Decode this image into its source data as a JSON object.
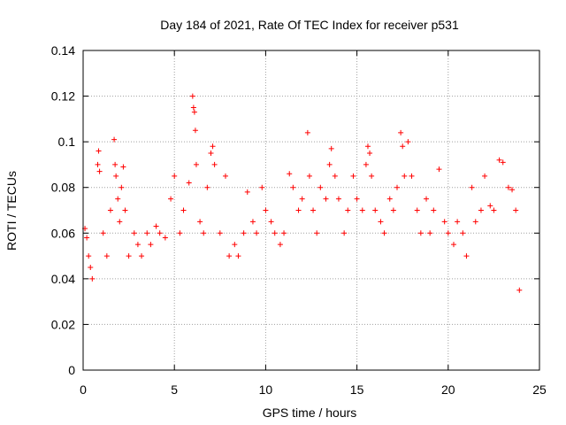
{
  "chart_data": {
    "type": "scatter",
    "title": "Day 184 of 2021, Rate Of TEC Index for receiver p531",
    "xlabel": "GPS time / hours",
    "ylabel": "ROTI / TECUs",
    "xlim": [
      0,
      25
    ],
    "ylim": [
      0,
      0.14
    ],
    "xticks": [
      0,
      5,
      10,
      15,
      20,
      25
    ],
    "yticks": [
      0,
      0.02,
      0.04,
      0.06,
      0.08,
      0.1,
      0.12,
      0.14
    ],
    "xtick_labels": [
      "0",
      "5",
      "10",
      "15",
      "20",
      "25"
    ],
    "ytick_labels": [
      "0",
      "0.02",
      "0.04",
      "0.06",
      "0.08",
      "0.1",
      "0.12",
      "0.14"
    ],
    "grid": true,
    "marker": "+",
    "color": "#ff0000",
    "series": [
      {
        "x": [
          0.1,
          0.2,
          0.3,
          0.4,
          0.5,
          0.8,
          0.85,
          0.9,
          1.1,
          1.3,
          1.5,
          1.7,
          1.75,
          1.8,
          1.9,
          2.0,
          2.1,
          2.2,
          2.3,
          2.5,
          2.8,
          3.0,
          3.2,
          3.5,
          3.7,
          4.0,
          4.2,
          4.5,
          4.8,
          5.0,
          5.3,
          5.5,
          5.8,
          6.0,
          6.05,
          6.1,
          6.15,
          6.2,
          6.4,
          6.6,
          6.8,
          7.0,
          7.1,
          7.2,
          7.5,
          7.8,
          8.0,
          8.3,
          8.5,
          8.8,
          9.0,
          9.3,
          9.5,
          9.8,
          10.0,
          10.3,
          10.5,
          10.8,
          11.0,
          11.3,
          11.5,
          11.8,
          12.0,
          12.3,
          12.4,
          12.6,
          12.8,
          13.0,
          13.3,
          13.5,
          13.6,
          13.8,
          14.0,
          14.3,
          14.5,
          14.8,
          15.0,
          15.3,
          15.5,
          15.6,
          15.7,
          15.8,
          16.0,
          16.3,
          16.5,
          16.8,
          17.0,
          17.2,
          17.4,
          17.5,
          17.6,
          17.8,
          18.0,
          18.3,
          18.5,
          18.8,
          19.0,
          19.2,
          19.5,
          19.8,
          20.0,
          20.3,
          20.5,
          20.8,
          21.0,
          21.3,
          21.5,
          21.8,
          22.0,
          22.3,
          22.5,
          22.8,
          23.0,
          23.3,
          23.5,
          23.7,
          23.9
        ],
        "y": [
          0.062,
          0.058,
          0.05,
          0.045,
          0.04,
          0.09,
          0.096,
          0.087,
          0.06,
          0.05,
          0.07,
          0.101,
          0.09,
          0.085,
          0.075,
          0.065,
          0.08,
          0.089,
          0.07,
          0.05,
          0.06,
          0.055,
          0.05,
          0.06,
          0.055,
          0.063,
          0.06,
          0.058,
          0.075,
          0.085,
          0.06,
          0.07,
          0.082,
          0.12,
          0.115,
          0.113,
          0.105,
          0.09,
          0.065,
          0.06,
          0.08,
          0.095,
          0.098,
          0.09,
          0.06,
          0.085,
          0.05,
          0.055,
          0.05,
          0.06,
          0.078,
          0.065,
          0.06,
          0.08,
          0.07,
          0.065,
          0.06,
          0.055,
          0.06,
          0.086,
          0.08,
          0.07,
          0.075,
          0.104,
          0.085,
          0.07,
          0.06,
          0.08,
          0.075,
          0.09,
          0.097,
          0.085,
          0.075,
          0.06,
          0.07,
          0.085,
          0.075,
          0.07,
          0.09,
          0.098,
          0.095,
          0.085,
          0.07,
          0.065,
          0.06,
          0.075,
          0.07,
          0.08,
          0.104,
          0.098,
          0.085,
          0.1,
          0.085,
          0.07,
          0.06,
          0.075,
          0.06,
          0.07,
          0.088,
          0.065,
          0.06,
          0.055,
          0.065,
          0.06,
          0.05,
          0.08,
          0.065,
          0.07,
          0.085,
          0.072,
          0.07,
          0.092,
          0.091,
          0.08,
          0.079,
          0.07,
          0.035
        ]
      }
    ]
  }
}
